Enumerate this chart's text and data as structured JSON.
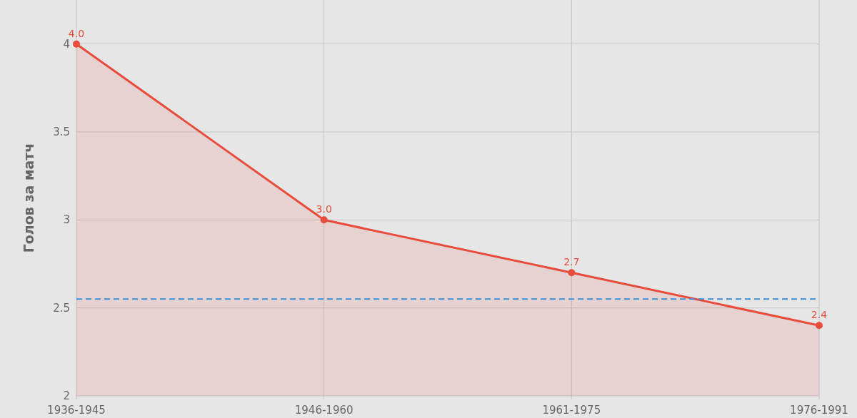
{
  "chart_data": {
    "type": "area",
    "ylabel": "Голов за матч",
    "categories": [
      "1936-1945",
      "1946-1960",
      "1961-1975",
      "1976-1991"
    ],
    "series": [
      {
        "color": "#e74c3c",
        "values": [
          4.0,
          3.0,
          2.7,
          2.4
        ],
        "value_labels": [
          "4.0",
          "3.0",
          "2.7",
          "2.4"
        ]
      }
    ],
    "ylim": [
      2,
      4.25
    ],
    "yticks": [
      2,
      2.5,
      3,
      3.5,
      4
    ],
    "grid": true,
    "marker": "circle",
    "line_style": "solid",
    "ref_lines": [
      {
        "axis": "y",
        "value": 2.55,
        "color": "#3f8fd2",
        "line_style": "dashed"
      }
    ]
  }
}
